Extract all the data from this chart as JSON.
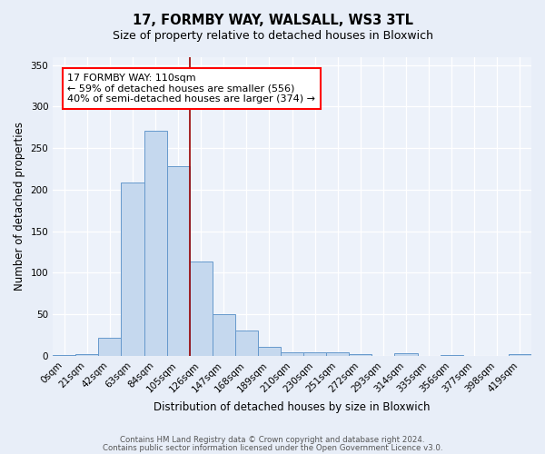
{
  "title1": "17, FORMBY WAY, WALSALL, WS3 3TL",
  "title2": "Size of property relative to detached houses in Bloxwich",
  "xlabel": "Distribution of detached houses by size in Bloxwich",
  "ylabel": "Number of detached properties",
  "categories": [
    "0sqm",
    "21sqm",
    "42sqm",
    "63sqm",
    "84sqm",
    "105sqm",
    "126sqm",
    "147sqm",
    "168sqm",
    "189sqm",
    "210sqm",
    "230sqm",
    "251sqm",
    "272sqm",
    "293sqm",
    "314sqm",
    "335sqm",
    "356sqm",
    "377sqm",
    "398sqm",
    "419sqm"
  ],
  "values": [
    1,
    2,
    22,
    209,
    271,
    228,
    114,
    50,
    30,
    11,
    4,
    4,
    4,
    2,
    0,
    3,
    0,
    1,
    0,
    0,
    2
  ],
  "bar_color": "#c5d8ee",
  "bar_edge_color": "#6699cc",
  "red_line_index": 5.5,
  "annotation_text": "17 FORMBY WAY: 110sqm\n← 59% of detached houses are smaller (556)\n40% of semi-detached houses are larger (374) →",
  "footer1": "Contains HM Land Registry data © Crown copyright and database right 2024.",
  "footer2": "Contains public sector information licensed under the Open Government Licence v3.0.",
  "bg_color": "#e8eef8",
  "plot_bg_color": "#edf2fa",
  "ylim": [
    0,
    360
  ],
  "yticks": [
    0,
    50,
    100,
    150,
    200,
    250,
    300,
    350
  ]
}
